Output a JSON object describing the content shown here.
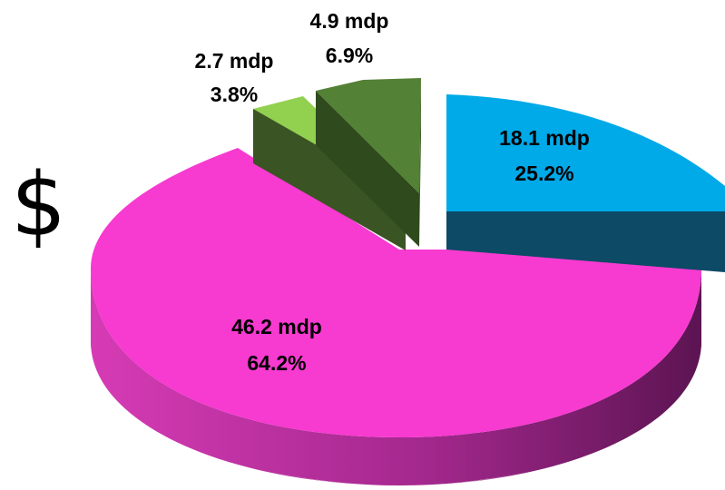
{
  "currency_symbol": "$",
  "chart_data": {
    "type": "pie",
    "title": "",
    "slices": [
      {
        "label": "46.2 mdp",
        "value": 46.2,
        "percent_label": "64.2%",
        "color": "#f73ad0"
      },
      {
        "label": "2.7 mdp",
        "value": 2.7,
        "percent_label": "3.8%",
        "color": "#92d050"
      },
      {
        "label": "4.9 mdp",
        "value": 4.9,
        "percent_label": "6.9%",
        "color": "#538135"
      },
      {
        "label": "18.1 mdp",
        "value": 18.1,
        "percent_label": "25.2%",
        "color": "#00a9e8"
      }
    ]
  }
}
